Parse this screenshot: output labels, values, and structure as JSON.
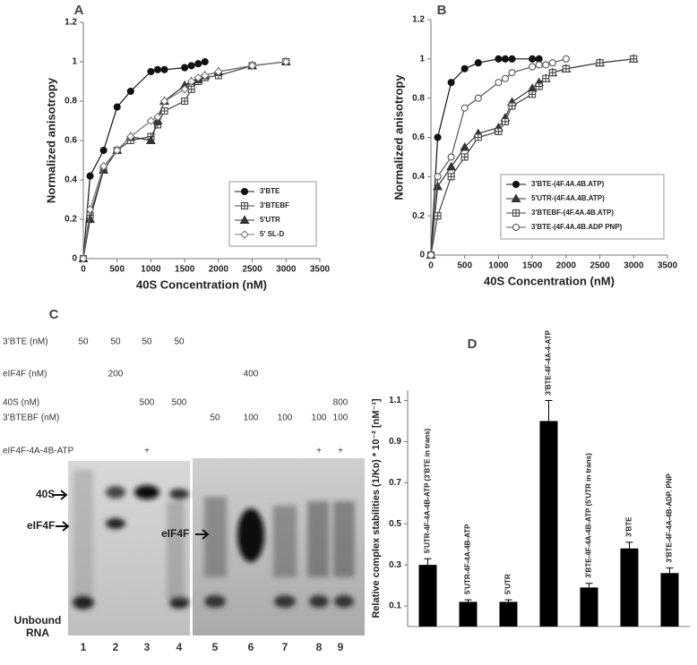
{
  "chart_data": [
    {
      "type": "scatter-line",
      "panel": "A",
      "x_label": "40S Concentration (nM)",
      "y_label": "Normalized anisotropy",
      "x": [
        0,
        100,
        300,
        500,
        700,
        1000,
        1100,
        1200,
        1500,
        1600,
        1700,
        1800,
        2000,
        2500,
        3000
      ],
      "xlim": [
        0,
        3500
      ],
      "xticks": [
        0,
        500,
        1000,
        1500,
        2000,
        2500,
        3000,
        3500
      ],
      "ylim": [
        0,
        1.2
      ],
      "yticks": [
        0,
        0.2,
        0.4,
        0.6,
        0.8,
        1,
        1.2
      ],
      "series": [
        {
          "name": "3'BTE",
          "marker": "circle-filled",
          "color": "#111",
          "values": [
            0,
            0.42,
            0.55,
            0.77,
            0.85,
            0.95,
            0.96,
            0.96,
            0.97,
            0.98,
            0.99,
            1.0,
            null,
            null,
            null
          ]
        },
        {
          "name": "3'BTEBF",
          "marker": "square-plus",
          "color": "#444",
          "values": [
            0,
            0.22,
            0.45,
            0.55,
            0.6,
            0.62,
            0.68,
            0.75,
            0.8,
            0.86,
            0.9,
            0.92,
            0.93,
            0.98,
            1.0
          ]
        },
        {
          "name": "5'UTR",
          "marker": "triangle",
          "color": "#333",
          "values": [
            0,
            0.2,
            0.45,
            0.55,
            0.62,
            0.6,
            0.7,
            0.8,
            0.88,
            0.9,
            0.91,
            0.93,
            0.95,
            0.98,
            1.0
          ]
        },
        {
          "name": "5' SL-D",
          "marker": "diamond-open",
          "color": "#777",
          "values": [
            0,
            0.25,
            0.47,
            0.55,
            0.62,
            0.7,
            0.72,
            0.8,
            0.86,
            0.9,
            0.92,
            0.93,
            0.95,
            0.98,
            1.0
          ]
        }
      ]
    },
    {
      "type": "scatter-line",
      "panel": "B",
      "x_label": "40S Concentration (nM)",
      "y_label": "Normalized anisotropy",
      "x": [
        0,
        100,
        300,
        500,
        700,
        1000,
        1100,
        1200,
        1500,
        1600,
        1700,
        1800,
        2000,
        2500,
        3000
      ],
      "xlim": [
        0,
        3500
      ],
      "xticks": [
        0,
        500,
        1000,
        1500,
        2000,
        2500,
        3000,
        3500
      ],
      "ylim": [
        0,
        1.2
      ],
      "yticks": [
        0,
        0.2,
        0.4,
        0.6,
        0.8,
        1,
        1.2
      ],
      "series": [
        {
          "name": "3'BTE-(4F.4A.4B.ATP)",
          "marker": "circle-filled",
          "color": "#111",
          "values": [
            0,
            0.6,
            0.88,
            0.95,
            0.98,
            1.0,
            1.0,
            1.0,
            1.0,
            1.0,
            null,
            null,
            null,
            null,
            null
          ]
        },
        {
          "name": "5'UTR-(4F.4A.4B.ATP)",
          "marker": "triangle",
          "color": "#333",
          "values": [
            0,
            0.35,
            0.45,
            0.55,
            0.62,
            0.65,
            0.7,
            0.78,
            0.85,
            0.88,
            0.9,
            0.93,
            0.95,
            0.98,
            1.0
          ]
        },
        {
          "name": "3'BTEBF-(4F.4A.4B.ATP)",
          "marker": "square-plus",
          "color": "#444",
          "values": [
            0,
            0.2,
            0.4,
            0.5,
            0.6,
            0.63,
            0.68,
            0.76,
            0.82,
            0.86,
            0.9,
            0.93,
            0.95,
            0.98,
            1.0
          ]
        },
        {
          "name": "3'BTE-(4F.4A.4B.ADP PNP)",
          "marker": "circle-open",
          "color": "#555",
          "values": [
            0,
            0.4,
            0.5,
            0.75,
            0.8,
            0.88,
            0.9,
            0.93,
            0.96,
            0.97,
            0.97,
            0.98,
            1.0,
            null,
            null
          ]
        }
      ]
    },
    {
      "type": "bar",
      "panel": "D",
      "y_label": "Relative complex stabilities (1/Kᴅ) * 10⁻² [nM⁻¹]",
      "categories": [
        "5'UTR-4F-4A-4B-ATP (3'BTE in trans)",
        "5'UTR-4F-4A-4B-ATP",
        "5'UTR",
        "3'BTE-4F-4A-4-ATP",
        "3'BTE-4F-4A-4B-ATP (5'UTR in trans)",
        "3'BTE",
        "3'BTE-4F-4A-4B-ADP. PNP"
      ],
      "values": [
        0.3,
        0.12,
        0.12,
        1.0,
        0.19,
        0.38,
        0.26
      ],
      "errors": [
        0.03,
        0.01,
        0.01,
        0.1,
        0.02,
        0.03,
        0.025
      ],
      "color": "#000",
      "ylim": [
        0,
        1.15
      ],
      "yticks": [
        0.1,
        0.3,
        0.5,
        0.7,
        0.9,
        1.1
      ]
    }
  ],
  "gel": {
    "panel": "C",
    "rows": [
      {
        "label": "3’BTE (nM)",
        "cells": [
          "50",
          "50",
          "50",
          "50",
          null,
          null,
          null,
          null,
          null
        ]
      },
      {
        "label": "eIF4F (nM)",
        "cells": [
          null,
          "200",
          null,
          null,
          null,
          "400",
          null,
          null,
          null
        ]
      },
      {
        "label": "40S (nM)",
        "cells": [
          null,
          null,
          "500",
          "500",
          null,
          null,
          null,
          null,
          "800"
        ]
      },
      {
        "label": "3’BTEBF (nM)",
        "cells": [
          null,
          null,
          null,
          null,
          "50",
          "100",
          "100",
          "100",
          "100"
        ]
      },
      {
        "label": "eIF4F-4A-4B-ATP",
        "cells": [
          null,
          null,
          "+",
          null,
          null,
          null,
          null,
          "+",
          "+"
        ]
      }
    ],
    "lanes": [
      "1",
      "2",
      "3",
      "4",
      "5",
      "6",
      "7",
      "8",
      "9"
    ],
    "band_labels": [
      "40S",
      "eIF4F",
      "Unbound",
      "RNA",
      "eIF4F"
    ]
  }
}
